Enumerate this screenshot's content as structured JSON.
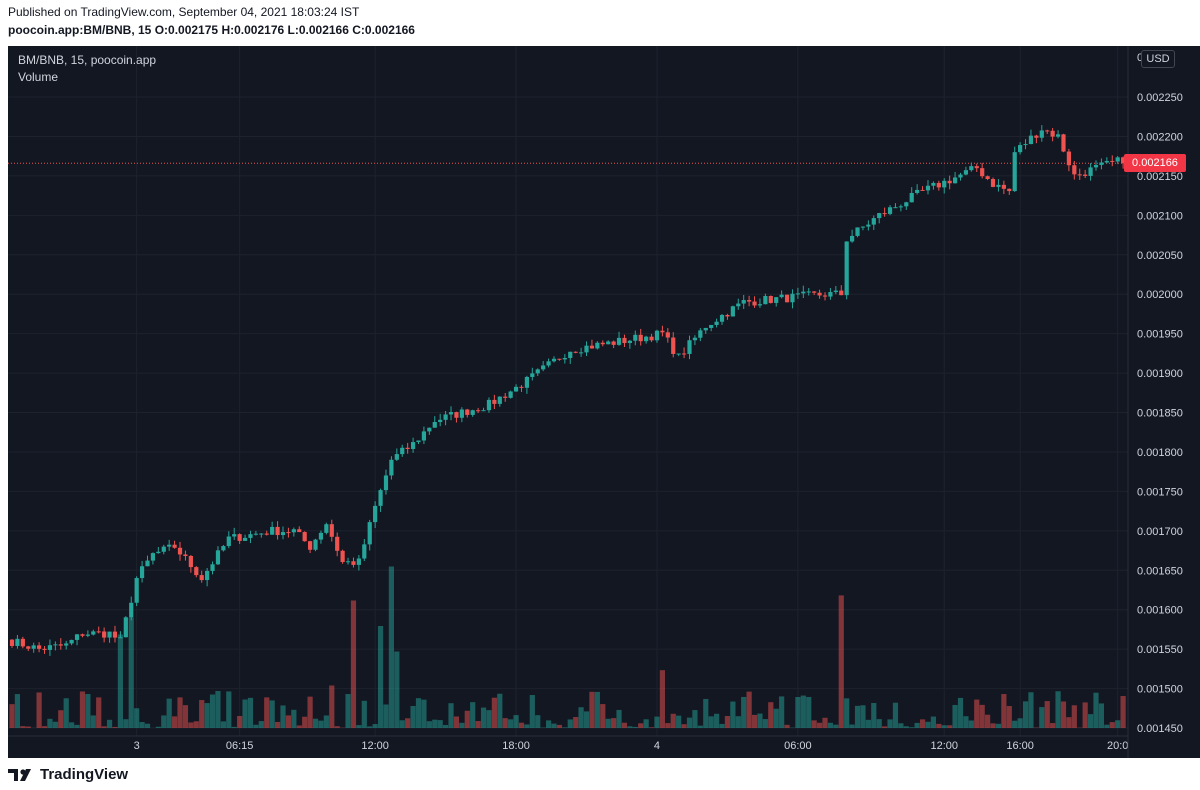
{
  "header": {
    "published": "Published on TradingView.com, September 04, 2021 18:03:24 IST",
    "symbol_interval": "poocoin.app:BM/BNB, 15",
    "o_label": "O:",
    "o_value": "0.002175",
    "h_label": "H:",
    "h_value": "0.002176",
    "l_label": "L:",
    "l_value": "0.002166",
    "c_label": "C:",
    "c_value": "0.002166"
  },
  "legend": {
    "series_title": "BM/BNB, 15, poocoin.app",
    "volume_label": "Volume"
  },
  "currency_button": "USD",
  "last_price_label": "0.002166",
  "brand": {
    "name": "TradingView",
    "logo_icon": "tradingview-logo-icon"
  },
  "colors": {
    "up": "#26a69a",
    "down": "#ef5350",
    "background": "#131722",
    "grid": "#1e222d",
    "text": "#d1d4dc",
    "price_tag": "#f23645"
  },
  "chart_data": {
    "type": "candlestick",
    "interval_minutes": 15,
    "y_ticks": [
      "0",
      "0.002250",
      "0.002200",
      "0.002150",
      "0.002100",
      "0.002050",
      "0.002000",
      "0.001950",
      "0.001900",
      "0.001850",
      "0.001800",
      "0.001750",
      "0.001700",
      "0.001650",
      "0.001600",
      "0.001550",
      "0.001500",
      "0.001450"
    ],
    "ylim": [
      0.00144,
      0.00228
    ],
    "x_ticks": [
      "3",
      "06:15",
      "12:00",
      "18:00",
      "4",
      "06:00",
      "12:00",
      "16:00",
      "20:0"
    ],
    "last_price": 0.002166,
    "anchors": [
      [
        "0",
        0.00156
      ],
      [
        "5",
        0.00155
      ],
      [
        "10",
        0.001555
      ],
      [
        "13",
        0.00157
      ],
      [
        "18",
        0.00157
      ],
      [
        "20",
        0.00156
      ],
      [
        "23",
        0.00164
      ],
      [
        "26",
        0.00167
      ],
      [
        "30",
        0.00168
      ],
      [
        "35",
        0.00164
      ],
      [
        "40",
        0.00169
      ],
      [
        "48",
        0.0017
      ],
      [
        "52",
        0.0017
      ],
      [
        "55",
        0.00168
      ],
      [
        "58",
        0.00171
      ],
      [
        "61",
        0.00166
      ],
      [
        "64",
        0.00166
      ],
      [
        "67",
        0.00173
      ],
      [
        "70",
        0.00179
      ],
      [
        "74",
        0.00181
      ],
      [
        "78",
        0.00184
      ],
      [
        "83",
        0.00185
      ],
      [
        "88",
        0.00186
      ],
      [
        "95",
        0.00189
      ],
      [
        "103",
        0.00193
      ],
      [
        "112",
        0.00194
      ],
      [
        "120",
        0.00195
      ],
      [
        "123",
        0.00192
      ],
      [
        "128",
        0.00196
      ],
      [
        "135",
        0.00199
      ],
      [
        "150",
        0.002
      ],
      [
        "153",
        0.002
      ],
      [
        "154",
        0.00207
      ],
      [
        "160",
        0.0021
      ],
      [
        "168",
        0.00213
      ],
      [
        "178",
        0.00216
      ],
      [
        "181",
        0.00214
      ],
      [
        "184",
        0.00213
      ],
      [
        "185",
        0.00218
      ],
      [
        "190",
        0.00221
      ],
      [
        "193",
        0.0022
      ],
      [
        "196",
        0.00215
      ],
      [
        "200",
        0.00216
      ],
      [
        "205",
        0.00217
      ]
    ],
    "volume_spikes": [
      [
        "20",
        0.55
      ],
      [
        "22",
        0.65
      ],
      [
        "63",
        0.75
      ],
      [
        "70",
        0.95
      ],
      [
        "68",
        0.6
      ],
      [
        "71",
        0.45
      ],
      [
        "153",
        0.78
      ],
      [
        "120",
        0.34
      ],
      [
        "59",
        0.25
      ],
      [
        "14",
        0.2
      ],
      [
        "16",
        0.18
      ]
    ]
  }
}
